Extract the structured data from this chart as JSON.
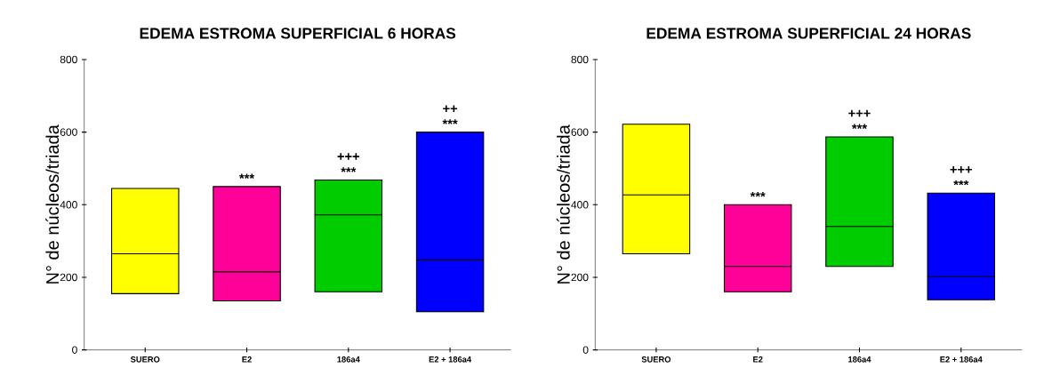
{
  "chart_data": [
    {
      "type": "box",
      "title": "EDEMA ESTROMA SUPERFICIAL 6 HORAS",
      "ylabel": "N° de núcleos/triada",
      "categories": [
        "SUERO",
        "E2",
        "186a4",
        "E2 + 186a4"
      ],
      "colors": [
        "#ffff00",
        "#ff0099",
        "#00cc00",
        "#0000ff"
      ],
      "boxes": [
        {
          "low": 155,
          "q1": 155,
          "median": 265,
          "q3": 445,
          "high": 445
        },
        {
          "low": 135,
          "q1": 135,
          "median": 215,
          "q3": 450,
          "high": 450
        },
        {
          "low": 160,
          "q1": 160,
          "median": 372,
          "q3": 468,
          "high": 468
        },
        {
          "low": 105,
          "q1": 105,
          "median": 248,
          "q3": 600,
          "high": 600
        }
      ],
      "ylim": [
        0,
        800
      ],
      "yticks": [
        0,
        200,
        400,
        600,
        800
      ],
      "annotations": [
        {
          "text": "***",
          "x": "E2",
          "y": 450
        },
        {
          "text": "***",
          "x": "186a4",
          "y": 468
        },
        {
          "text": "+++",
          "x": "186a4",
          "y": 468
        },
        {
          "text": "***",
          "x": "E2 + 186a4",
          "y": 600
        },
        {
          "text": "++",
          "x": "E2 + 186a4",
          "y": 600
        }
      ]
    },
    {
      "type": "box",
      "title": "EDEMA ESTROMA SUPERFICIAL 24 HORAS",
      "ylabel": "N° de núcleos/triada",
      "categories": [
        "SUERO",
        "E2",
        "186a4",
        "E2 + 186a4"
      ],
      "colors": [
        "#ffff00",
        "#ff0099",
        "#00cc00",
        "#0000ff"
      ],
      "boxes": [
        {
          "low": 265,
          "q1": 265,
          "median": 427,
          "q3": 622,
          "high": 622
        },
        {
          "low": 160,
          "q1": 160,
          "median": 230,
          "q3": 400,
          "high": 400
        },
        {
          "low": 230,
          "q1": 230,
          "median": 340,
          "q3": 587,
          "high": 587
        },
        {
          "low": 138,
          "q1": 138,
          "median": 202,
          "q3": 432,
          "high": 432
        }
      ],
      "ylim": [
        0,
        800
      ],
      "yticks": [
        0,
        200,
        400,
        600,
        800
      ],
      "annotations": [
        {
          "text": "***",
          "x": "E2",
          "y": 400
        },
        {
          "text": "***",
          "x": "186a4",
          "y": 587
        },
        {
          "text": "+++",
          "x": "186a4",
          "y": 587
        },
        {
          "text": "***",
          "x": "E2 + 186a4",
          "y": 432
        },
        {
          "text": "+++",
          "x": "E2 + 186a4",
          "y": 432
        }
      ]
    }
  ]
}
